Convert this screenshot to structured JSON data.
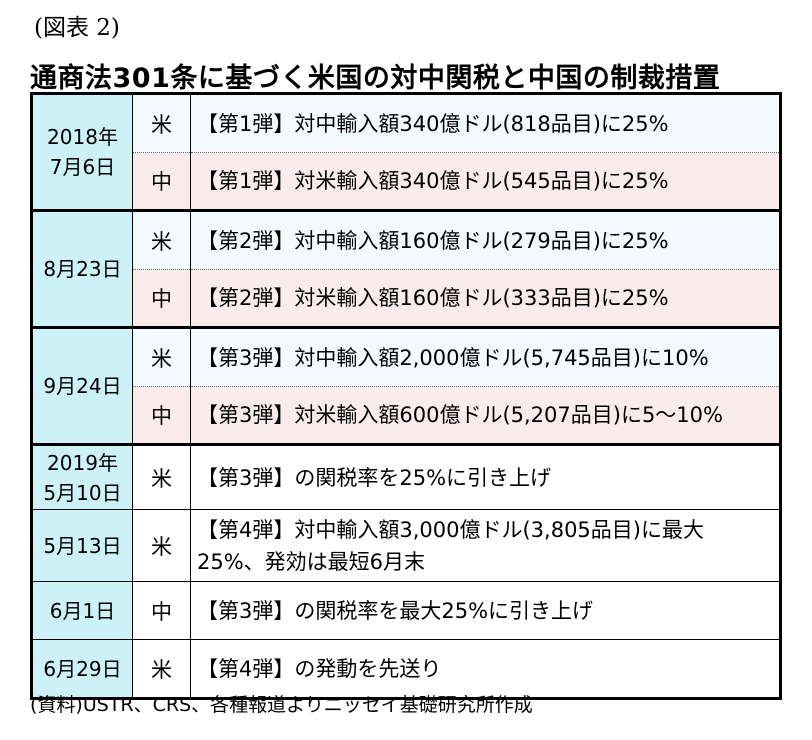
{
  "figure_label": "(図表 2)",
  "title": "通商法301条に基づく米国の対中関税と中国の制裁措置",
  "rows": [
    {
      "date": "2018年\n7月6日",
      "side": "米",
      "desc": "【第1弾】対中輸入額340億ドル(818品目)に25%"
    },
    {
      "side": "中",
      "desc": "【第1弾】対米輸入額340億ドル(545品目)に25%"
    },
    {
      "date": "8月23日",
      "side": "米",
      "desc": "【第2弾】対中輸入額160億ドル(279品目)に25%"
    },
    {
      "side": "中",
      "desc": "【第2弾】対米輸入額160億ドル(333品目)に25%"
    },
    {
      "date": "9月24日",
      "side": "米",
      "desc": "【第3弾】対中輸入額2,000億ドル(5,745品目)に10%"
    },
    {
      "side": "中",
      "desc": "【第3弾】対米輸入額600億ドル(5,207品目)に5～10%"
    },
    {
      "date": "2019年\n5月10日",
      "side": "米",
      "desc": "【第3弾】の関税率を25%に引き上げ"
    },
    {
      "date": "5月13日",
      "side": "米",
      "desc": "【第4弾】対中輸入額3,000億ドル(3,805品目)に最大\n25%、発効は最短6月末"
    },
    {
      "date": "6月1日",
      "side": "中",
      "desc": "【第3弾】の関税率を最大25%に引き上げ"
    },
    {
      "date": "6月29日",
      "side": "米",
      "desc": "【第4弾】の発動を先送り"
    }
  ],
  "source": "(資料)USTR、CRS、各種報道よりニッセイ基礎研究所作成",
  "colors": {
    "date_bg": "#ccf1f7",
    "us_row_bg": "#f2fafd",
    "cn_row_bg": "#fbecec",
    "border": "#000000"
  }
}
